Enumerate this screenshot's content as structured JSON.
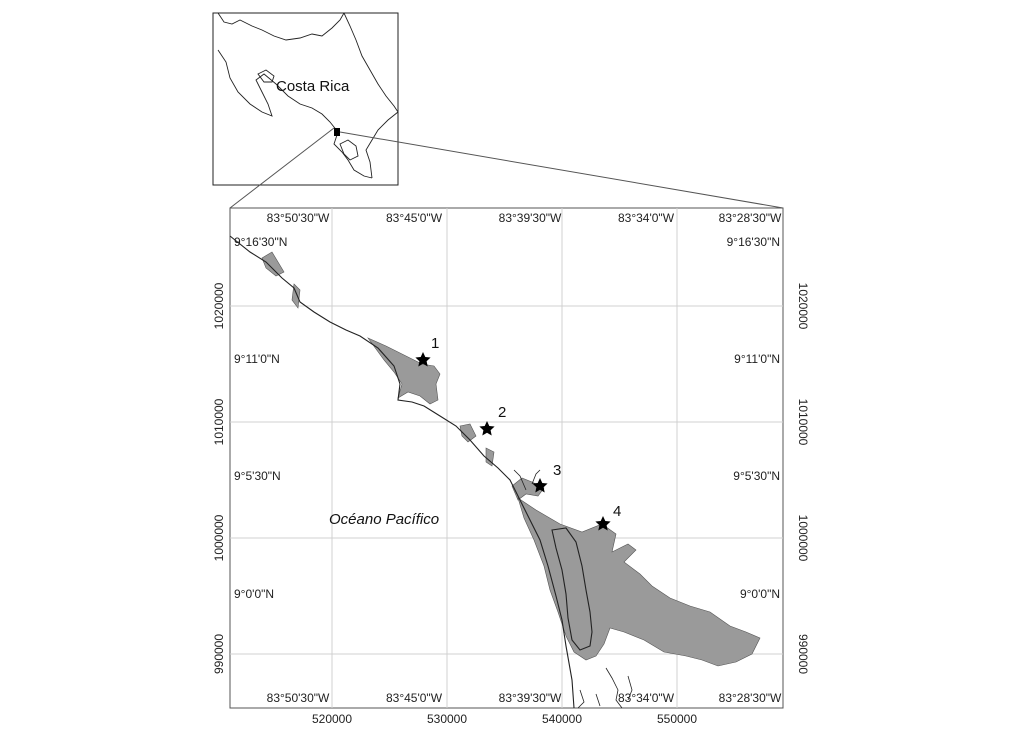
{
  "inset": {
    "country_label": "Costa Rica"
  },
  "map": {
    "lon_labels": [
      "83°50'30\"W",
      "83°45'0\"W",
      "83°39'30\"W",
      "83°34'0\"W",
      "83°28'30\"W"
    ],
    "lat_labels": [
      "9°16'30\"N",
      "9°11'0\"N",
      "9°5'30\"N",
      "9°0'0\"N"
    ],
    "easting_labels": [
      "520000",
      "530000",
      "540000",
      "550000"
    ],
    "northing_labels": [
      "1020000",
      "1010000",
      "1000000",
      "990000"
    ],
    "ocean_label": "Océano Pacífico",
    "sites": [
      {
        "label": "1"
      },
      {
        "label": "2"
      },
      {
        "label": "3"
      },
      {
        "label": "4"
      }
    ],
    "colors": {
      "wetland_fill": "#9a9a9a",
      "grid": "#d0d0d0",
      "frame": "#555555",
      "coast": "#222222",
      "star": "#000000"
    }
  }
}
